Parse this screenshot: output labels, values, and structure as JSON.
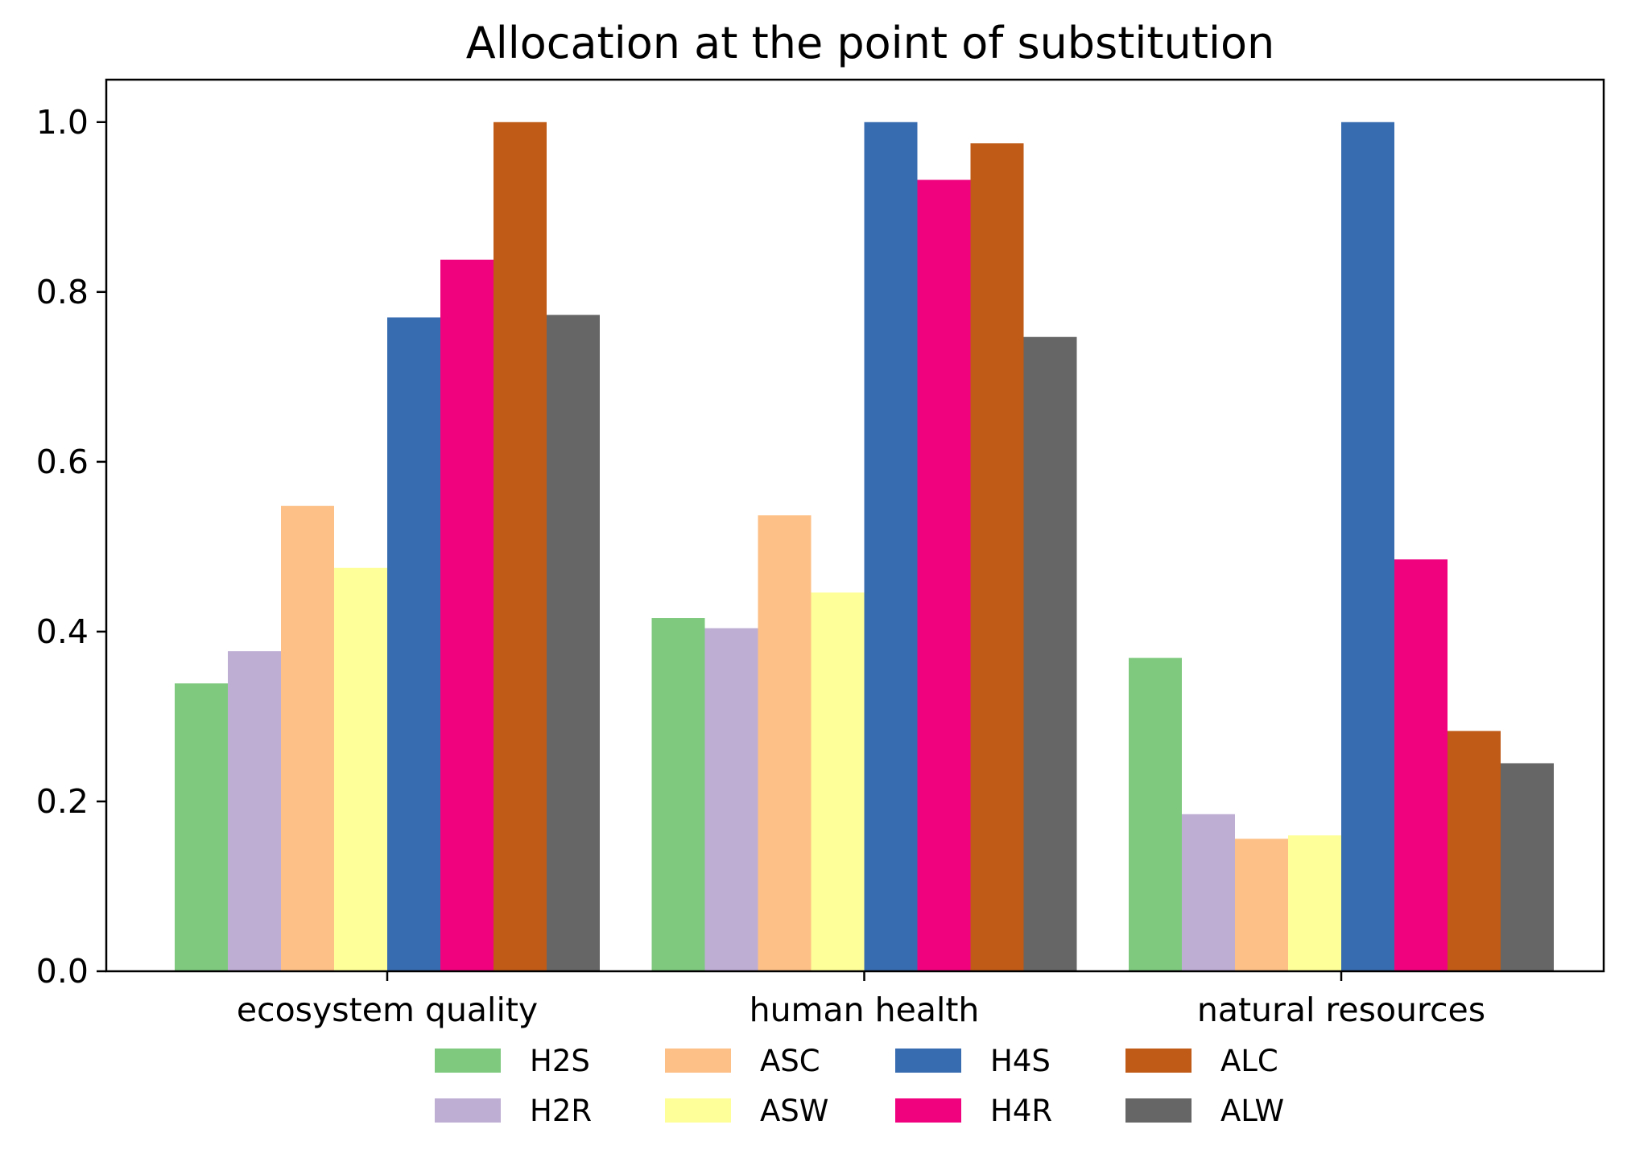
{
  "chart_data": {
    "type": "bar",
    "title": "Allocation at the point of substitution",
    "xlabel": "",
    "ylabel": "",
    "categories": [
      "ecosystem quality",
      "human health",
      "natural resources"
    ],
    "ylim": [
      0,
      1.05
    ],
    "yticks": [
      "0.0",
      "0.2",
      "0.4",
      "0.6",
      "0.8",
      "1.0"
    ],
    "ytick_values": [
      0,
      0.2,
      0.4,
      0.6,
      0.8,
      1.0
    ],
    "grid": false,
    "legend_position": "bottom-center",
    "series": [
      {
        "name": "H2S",
        "color": "#7fc97f",
        "values": [
          0.339,
          0.416,
          0.369
        ]
      },
      {
        "name": "H2R",
        "color": "#beaed4",
        "values": [
          0.377,
          0.404,
          0.185
        ]
      },
      {
        "name": "ASC",
        "color": "#fdc086",
        "values": [
          0.548,
          0.537,
          0.156
        ]
      },
      {
        "name": "ASW",
        "color": "#ffff99",
        "values": [
          0.475,
          0.446,
          0.16
        ]
      },
      {
        "name": "H4S",
        "color": "#386cb0",
        "values": [
          0.77,
          1.0,
          1.0
        ]
      },
      {
        "name": "H4R",
        "color": "#f0027f",
        "values": [
          0.838,
          0.932,
          0.485
        ]
      },
      {
        "name": "ALC",
        "color": "#bf5b17",
        "values": [
          1.0,
          0.975,
          0.283
        ]
      },
      {
        "name": "ALW",
        "color": "#666666",
        "values": [
          0.773,
          0.747,
          0.245
        ]
      }
    ]
  }
}
